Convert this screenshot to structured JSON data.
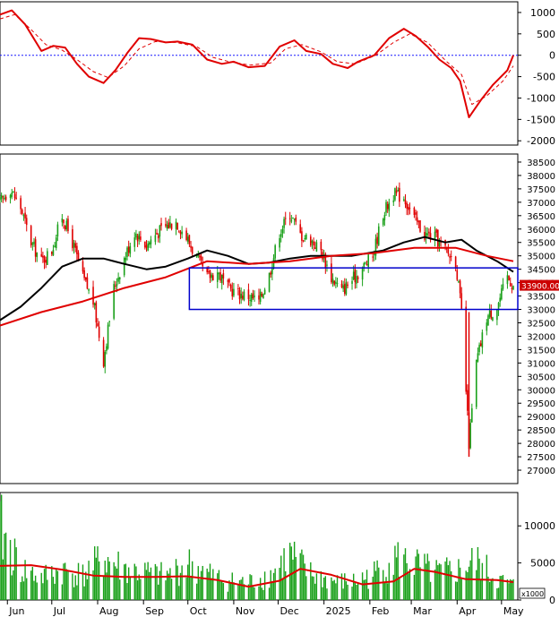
{
  "chart_data": [
    {
      "type": "line",
      "panel": "oscillator",
      "ylim": [
        -2100,
        1250
      ],
      "y_ticks": [
        1000,
        500,
        0,
        -500,
        -1000,
        -1500,
        -2000
      ],
      "zero_line": {
        "value": 0,
        "color": "#1a1aff",
        "style": "dotted"
      },
      "series": [
        {
          "color": "#e00000",
          "style": "solid",
          "points": [
            [
              "2024-05-27",
              950
            ],
            [
              "2024-06-04",
              1050
            ],
            [
              "2024-06-13",
              720
            ],
            [
              "2024-06-24",
              100
            ],
            [
              "2024-07-02",
              220
            ],
            [
              "2024-07-10",
              180
            ],
            [
              "2024-07-18",
              -200
            ],
            [
              "2024-07-26",
              -500
            ],
            [
              "2024-08-05",
              -650
            ],
            [
              "2024-08-13",
              -350
            ],
            [
              "2024-08-21",
              50
            ],
            [
              "2024-08-29",
              400
            ],
            [
              "2024-09-06",
              380
            ],
            [
              "2024-09-16",
              300
            ],
            [
              "2024-09-24",
              320
            ],
            [
              "2024-10-04",
              250
            ],
            [
              "2024-10-14",
              -100
            ],
            [
              "2024-10-24",
              -200
            ],
            [
              "2024-11-01",
              -150
            ],
            [
              "2024-11-11",
              -280
            ],
            [
              "2024-11-22",
              -250
            ],
            [
              "2024-12-02",
              200
            ],
            [
              "2024-12-12",
              350
            ],
            [
              "2024-12-20",
              100
            ],
            [
              "2024-12-30",
              30
            ],
            [
              "2025-01-07",
              -200
            ],
            [
              "2025-01-17",
              -300
            ],
            [
              "2025-01-24",
              -150
            ],
            [
              "2025-02-04",
              0
            ],
            [
              "2025-02-14",
              400
            ],
            [
              "2025-02-24",
              620
            ],
            [
              "2025-03-04",
              450
            ],
            [
              "2025-03-12",
              200
            ],
            [
              "2025-03-20",
              -100
            ],
            [
              "2025-03-28",
              -300
            ],
            [
              "2025-04-03",
              -600
            ],
            [
              "2025-04-09",
              -1450
            ],
            [
              "2025-04-17",
              -1050
            ],
            [
              "2025-04-25",
              -700
            ],
            [
              "2025-05-05",
              -350
            ],
            [
              "2025-05-09",
              0
            ]
          ]
        },
        {
          "color": "#e00000",
          "style": "dashed",
          "points": [
            [
              "2024-05-27",
              850
            ],
            [
              "2024-06-06",
              950
            ],
            [
              "2024-06-17",
              600
            ],
            [
              "2024-06-27",
              250
            ],
            [
              "2024-07-08",
              120
            ],
            [
              "2024-07-18",
              -100
            ],
            [
              "2024-07-29",
              -380
            ],
            [
              "2024-08-08",
              -520
            ],
            [
              "2024-08-19",
              -250
            ],
            [
              "2024-08-29",
              150
            ],
            [
              "2024-09-09",
              320
            ],
            [
              "2024-09-23",
              300
            ],
            [
              "2024-10-07",
              200
            ],
            [
              "2024-10-18",
              -50
            ],
            [
              "2024-10-29",
              -150
            ],
            [
              "2024-11-12",
              -230
            ],
            [
              "2024-11-26",
              -180
            ],
            [
              "2024-12-06",
              150
            ],
            [
              "2024-12-17",
              250
            ],
            [
              "2024-12-30",
              80
            ],
            [
              "2025-01-10",
              -150
            ],
            [
              "2025-01-22",
              -200
            ],
            [
              "2025-02-05",
              0
            ],
            [
              "2025-02-17",
              300
            ],
            [
              "2025-02-28",
              500
            ],
            [
              "2025-03-12",
              300
            ],
            [
              "2025-03-25",
              -150
            ],
            [
              "2025-04-04",
              -450
            ],
            [
              "2025-04-11",
              -1150
            ],
            [
              "2025-04-21",
              -950
            ],
            [
              "2025-05-02",
              -600
            ],
            [
              "2025-05-09",
              -250
            ]
          ]
        }
      ]
    },
    {
      "type": "candlestick",
      "panel": "price",
      "ylim": [
        26500,
        38800
      ],
      "y_ticks": [
        38500,
        38000,
        37500,
        37000,
        36500,
        36000,
        35500,
        35000,
        34500,
        34000,
        33500,
        33000,
        32500,
        32000,
        31500,
        31000,
        30500,
        30000,
        29500,
        29000,
        28500,
        28000,
        27500,
        27000
      ],
      "last_price": {
        "value": 33900,
        "label": "33900.00",
        "color": "#cc0000"
      },
      "up_color": "#1aa01a",
      "down_color": "#e00000",
      "candles_close": [
        [
          "2024-05-27",
          37000
        ],
        [
          "2024-06-03",
          37500
        ],
        [
          "2024-06-10",
          36800
        ],
        [
          "2024-06-17",
          35500
        ],
        [
          "2024-06-24",
          34800
        ],
        [
          "2024-07-01",
          35200
        ],
        [
          "2024-07-08",
          36500
        ],
        [
          "2024-07-15",
          35500
        ],
        [
          "2024-07-22",
          34200
        ],
        [
          "2024-07-29",
          33300
        ],
        [
          "2024-08-05",
          31100
        ],
        [
          "2024-08-12",
          33800
        ],
        [
          "2024-08-19",
          34900
        ],
        [
          "2024-08-26",
          35900
        ],
        [
          "2024-09-03",
          35400
        ],
        [
          "2024-09-09",
          35800
        ],
        [
          "2024-09-16",
          36100
        ],
        [
          "2024-09-23",
          36300
        ],
        [
          "2024-10-01",
          35600
        ],
        [
          "2024-10-07",
          34900
        ],
        [
          "2024-10-14",
          34200
        ],
        [
          "2024-10-21",
          34400
        ],
        [
          "2024-10-28",
          33800
        ],
        [
          "2024-11-04",
          33600
        ],
        [
          "2024-11-11",
          33500
        ],
        [
          "2024-11-18",
          33300
        ],
        [
          "2024-11-25",
          34300
        ],
        [
          "2024-12-02",
          35900
        ],
        [
          "2024-12-09",
          36600
        ],
        [
          "2024-12-16",
          35800
        ],
        [
          "2024-12-23",
          35600
        ],
        [
          "2024-12-30",
          35200
        ],
        [
          "2025-01-06",
          34200
        ],
        [
          "2025-01-13",
          33700
        ],
        [
          "2025-01-20",
          34100
        ],
        [
          "2025-02-03",
          35000
        ],
        [
          "2025-02-10",
          36600
        ],
        [
          "2025-02-17",
          37300
        ],
        [
          "2025-02-24",
          37200
        ],
        [
          "2025-03-03",
          36400
        ],
        [
          "2025-03-10",
          35800
        ],
        [
          "2025-03-17",
          35700
        ],
        [
          "2025-03-24",
          35200
        ],
        [
          "2025-03-31",
          34800
        ],
        [
          "2025-04-04",
          32900
        ],
        [
          "2025-04-09",
          28000
        ],
        [
          "2025-04-14",
          31000
        ],
        [
          "2025-04-21",
          32700
        ],
        [
          "2025-04-28",
          33100
        ],
        [
          "2025-05-05",
          34200
        ],
        [
          "2025-05-09",
          33900
        ]
      ],
      "series": [
        {
          "color": "#000000",
          "points": [
            [
              "2024-05-27",
              32600
            ],
            [
              "2024-06-10",
              33100
            ],
            [
              "2024-06-24",
              33800
            ],
            [
              "2024-07-08",
              34600
            ],
            [
              "2024-07-22",
              34900
            ],
            [
              "2024-08-05",
              34900
            ],
            [
              "2024-08-19",
              34700
            ],
            [
              "2024-09-03",
              34500
            ],
            [
              "2024-09-16",
              34600
            ],
            [
              "2024-10-01",
              34900
            ],
            [
              "2024-10-14",
              35200
            ],
            [
              "2024-10-28",
              35000
            ],
            [
              "2024-11-11",
              34700
            ],
            [
              "2024-11-25",
              34750
            ],
            [
              "2024-12-09",
              34900
            ],
            [
              "2024-12-23",
              35000
            ],
            [
              "2025-01-06",
              35000
            ],
            [
              "2025-01-20",
              35000
            ],
            [
              "2025-02-10",
              35200
            ],
            [
              "2025-02-24",
              35500
            ],
            [
              "2025-03-10",
              35700
            ],
            [
              "2025-03-24",
              35500
            ],
            [
              "2025-04-04",
              35600
            ],
            [
              "2025-04-14",
              35200
            ],
            [
              "2025-04-28",
              34800
            ],
            [
              "2025-05-09",
              34400
            ]
          ]
        },
        {
          "color": "#e00000",
          "points": [
            [
              "2024-05-27",
              32400
            ],
            [
              "2024-06-24",
              32900
            ],
            [
              "2024-07-22",
              33300
            ],
            [
              "2024-08-19",
              33800
            ],
            [
              "2024-09-16",
              34200
            ],
            [
              "2024-10-14",
              34800
            ],
            [
              "2024-11-11",
              34700
            ],
            [
              "2024-12-09",
              34800
            ],
            [
              "2025-01-06",
              35000
            ],
            [
              "2025-02-03",
              35100
            ],
            [
              "2025-03-03",
              35300
            ],
            [
              "2025-03-31",
              35300
            ],
            [
              "2025-04-21",
              35000
            ],
            [
              "2025-05-09",
              34800
            ]
          ]
        }
      ],
      "annotation_box": {
        "x_from": "2024-10-02",
        "x_to": "2025-05-12",
        "y_from": 33000,
        "y_to": 34550,
        "color": "#0000cc"
      }
    },
    {
      "type": "bar",
      "panel": "volume",
      "unit_label": "x1000",
      "ylim": [
        0,
        14500
      ],
      "y_ticks": [
        10000,
        5000,
        0
      ],
      "bar_color": "#1aa01a",
      "values_sample": [
        [
          "2024-05-27",
          12000
        ],
        [
          "2024-06-10",
          5200
        ],
        [
          "2024-06-24",
          3800
        ],
        [
          "2024-07-08",
          5000
        ],
        [
          "2024-07-22",
          4200
        ],
        [
          "2024-08-05",
          7000
        ],
        [
          "2024-08-19",
          5200
        ],
        [
          "2024-09-03",
          4500
        ],
        [
          "2024-09-16",
          4000
        ],
        [
          "2024-10-01",
          6000
        ],
        [
          "2024-10-14",
          4400
        ],
        [
          "2024-10-28",
          3200
        ],
        [
          "2024-11-11",
          3000
        ],
        [
          "2024-11-25",
          4000
        ],
        [
          "2024-12-09",
          7500
        ],
        [
          "2024-12-23",
          4300
        ],
        [
          "2025-01-06",
          3200
        ],
        [
          "2025-01-20",
          3000
        ],
        [
          "2025-02-03",
          4200
        ],
        [
          "2025-02-17",
          7000
        ],
        [
          "2025-03-03",
          6000
        ],
        [
          "2025-03-17",
          4500
        ],
        [
          "2025-04-04",
          5000
        ],
        [
          "2025-04-14",
          6500
        ],
        [
          "2025-04-28",
          3400
        ],
        [
          "2025-05-09",
          2500
        ]
      ],
      "series": [
        {
          "color": "#e00000",
          "points": [
            [
              "2024-05-27",
              4600
            ],
            [
              "2024-06-17",
              4700
            ],
            [
              "2024-07-08",
              4100
            ],
            [
              "2024-07-29",
              3300
            ],
            [
              "2024-08-19",
              3100
            ],
            [
              "2024-09-09",
              3100
            ],
            [
              "2024-09-30",
              3200
            ],
            [
              "2024-10-21",
              2700
            ],
            [
              "2024-11-11",
              1800
            ],
            [
              "2024-12-02",
              2600
            ],
            [
              "2024-12-16",
              4200
            ],
            [
              "2025-01-06",
              3400
            ],
            [
              "2025-01-27",
              2100
            ],
            [
              "2025-02-17",
              2500
            ],
            [
              "2025-03-03",
              4200
            ],
            [
              "2025-03-17",
              3800
            ],
            [
              "2025-04-07",
              2800
            ],
            [
              "2025-04-28",
              2700
            ],
            [
              "2025-05-09",
              2400
            ]
          ]
        }
      ]
    }
  ],
  "x_axis": {
    "start_date": "2024-05-27",
    "end_date": "2025-05-12",
    "labels": [
      {
        "date": "2024-06-01",
        "text": "Jun"
      },
      {
        "date": "2024-07-01",
        "text": "Jul"
      },
      {
        "date": "2024-08-01",
        "text": "Aug"
      },
      {
        "date": "2024-09-01",
        "text": "Sep"
      },
      {
        "date": "2024-10-01",
        "text": "Oct"
      },
      {
        "date": "2024-11-01",
        "text": "Nov"
      },
      {
        "date": "2024-12-01",
        "text": "Dec"
      },
      {
        "date": "2025-01-01",
        "text": "2025"
      },
      {
        "date": "2025-02-01",
        "text": "Feb"
      },
      {
        "date": "2025-03-01",
        "text": "Mar"
      },
      {
        "date": "2025-04-01",
        "text": "Apr"
      },
      {
        "date": "2025-05-01",
        "text": "May"
      }
    ]
  },
  "colors": {
    "axis": "#000000",
    "grid_panel_border": "#000000",
    "background": "#ffffff"
  }
}
